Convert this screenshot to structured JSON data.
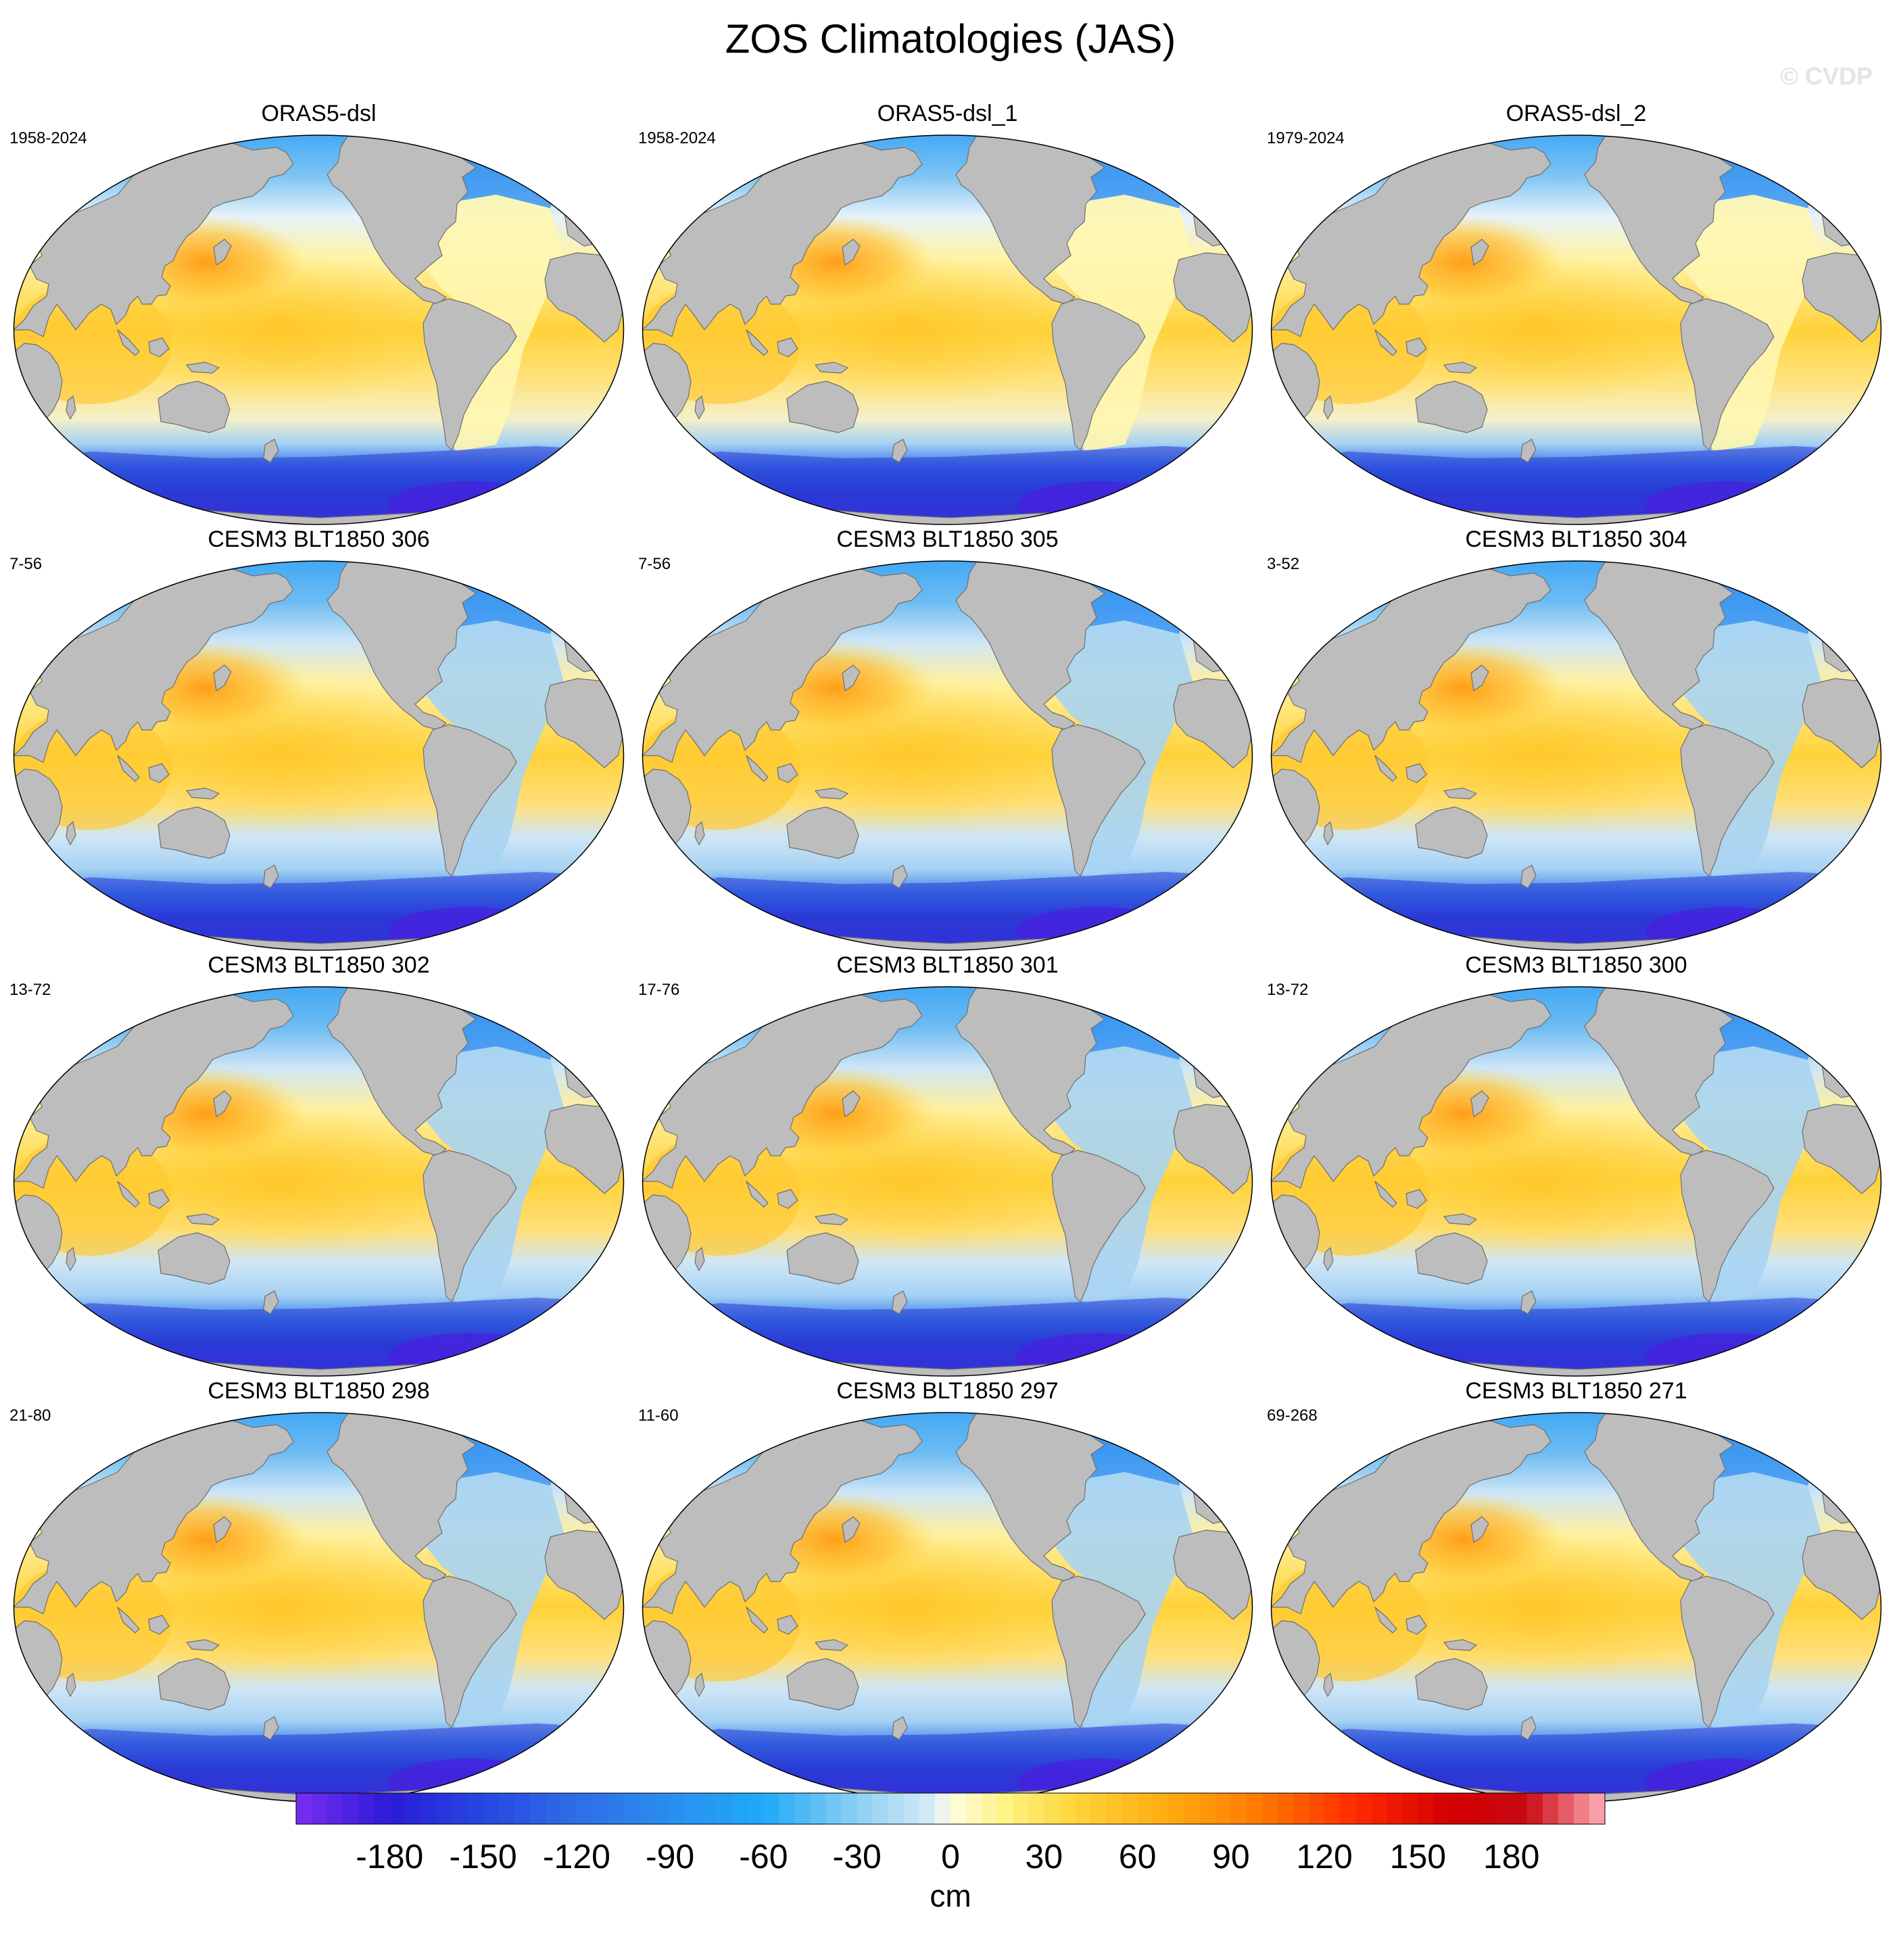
{
  "figure": {
    "title": "ZOS Climatologies (JAS)",
    "watermark": "© CVDP"
  },
  "panels": [
    {
      "title": "ORAS5-dsl",
      "years": "1958-2024",
      "source": "reanalysis"
    },
    {
      "title": "ORAS5-dsl_1",
      "years": "1958-2024",
      "source": "reanalysis"
    },
    {
      "title": "ORAS5-dsl_2",
      "years": "1979-2024",
      "source": "reanalysis"
    },
    {
      "title": "CESM3 BLT1850 306",
      "years": "7-56",
      "source": "model"
    },
    {
      "title": "CESM3 BLT1850 305",
      "years": "7-56",
      "source": "model"
    },
    {
      "title": "CESM3 BLT1850 304",
      "years": "3-52",
      "source": "model"
    },
    {
      "title": "CESM3 BLT1850 302",
      "years": "13-72",
      "source": "model"
    },
    {
      "title": "CESM3 BLT1850 301",
      "years": "17-76",
      "source": "model"
    },
    {
      "title": "CESM3 BLT1850 300",
      "years": "13-72",
      "source": "model"
    },
    {
      "title": "CESM3 BLT1850 298",
      "years": "21-80",
      "source": "model"
    },
    {
      "title": "CESM3 BLT1850 297",
      "years": "11-60",
      "source": "model"
    },
    {
      "title": "CESM3 BLT1850 271",
      "years": "69-268",
      "source": "model"
    }
  ],
  "colorbar": {
    "unit": "cm",
    "min": -210,
    "max": 210,
    "step": 5,
    "tick_labels": [
      "-180",
      "-150",
      "-120",
      "-90",
      "-60",
      "-30",
      "0",
      "30",
      "60",
      "90",
      "120",
      "150",
      "180"
    ],
    "tick_values": [
      -180,
      -150,
      -120,
      -90,
      -60,
      -30,
      0,
      30,
      60,
      90,
      120,
      150,
      180
    ],
    "color_stops": [
      {
        "value": -210,
        "color": "#7b2ff0"
      },
      {
        "value": -180,
        "color": "#2a1ad8"
      },
      {
        "value": -150,
        "color": "#2648e0"
      },
      {
        "value": -120,
        "color": "#2e6de6"
      },
      {
        "value": -90,
        "color": "#2a8ef0"
      },
      {
        "value": -60,
        "color": "#1eaaf8"
      },
      {
        "value": -30,
        "color": "#8ccff2"
      },
      {
        "value": -5,
        "color": "#d8ecf8"
      },
      {
        "value": 0,
        "color": "#fffce0"
      },
      {
        "value": 20,
        "color": "#fff07a"
      },
      {
        "value": 40,
        "color": "#ffd43a"
      },
      {
        "value": 70,
        "color": "#ffaa10"
      },
      {
        "value": 100,
        "color": "#ff7800"
      },
      {
        "value": 130,
        "color": "#ff2a00"
      },
      {
        "value": 160,
        "color": "#d20000"
      },
      {
        "value": 185,
        "color": "#c80a14"
      },
      {
        "value": 210,
        "color": "#ffb0b8"
      }
    ]
  },
  "map_colors": {
    "land": "#bdbdbd",
    "coast": "#6f6f6f",
    "arctic": "#3aa4f4",
    "southern_ocean": "#2a3ad6",
    "antarctic_shelf": "#4a1ee0",
    "pacific_warm_pool": "#ff9a10",
    "pacific_equatorial": "#ffd23a",
    "indian_ocean": "#ffc830",
    "atlantic_ref": "#fff6b0",
    "atlantic_model": "#a9d4f2",
    "north_atlantic": "#2f8ef0",
    "south_mid_lat": "#a6d2f4"
  }
}
